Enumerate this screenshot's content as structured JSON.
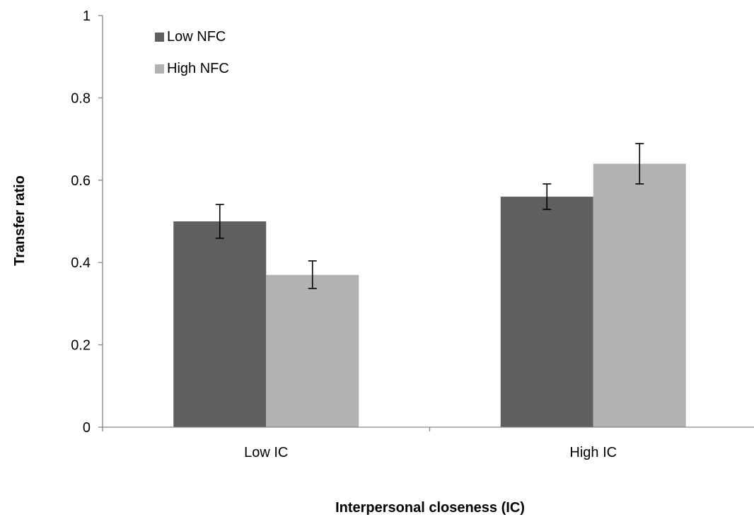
{
  "chart_data": {
    "type": "bar",
    "title": "",
    "xlabel": "Interpersonal closeness (IC)",
    "ylabel": "Transfer ratio",
    "categories": [
      "Low IC",
      "High IC"
    ],
    "series": [
      {
        "name": "Low NFC",
        "color": "#5f5f5f",
        "values": [
          0.5,
          0.56
        ],
        "error": [
          [
            0.459,
            0.541
          ],
          [
            0.529,
            0.591
          ]
        ]
      },
      {
        "name": "High NFC",
        "color": "#b2b2b2",
        "values": [
          0.37,
          0.64
        ],
        "error": [
          [
            0.337,
            0.404
          ],
          [
            0.591,
            0.689
          ]
        ]
      }
    ],
    "ylim": [
      0,
      1
    ],
    "yticks": [
      0,
      0.2,
      0.4,
      0.6,
      0.8,
      1
    ],
    "ytick_labels": [
      "0",
      "0.2",
      "0.4",
      "0.6",
      "0.8",
      "1"
    ],
    "grid": false,
    "legend_position": "top-left"
  }
}
